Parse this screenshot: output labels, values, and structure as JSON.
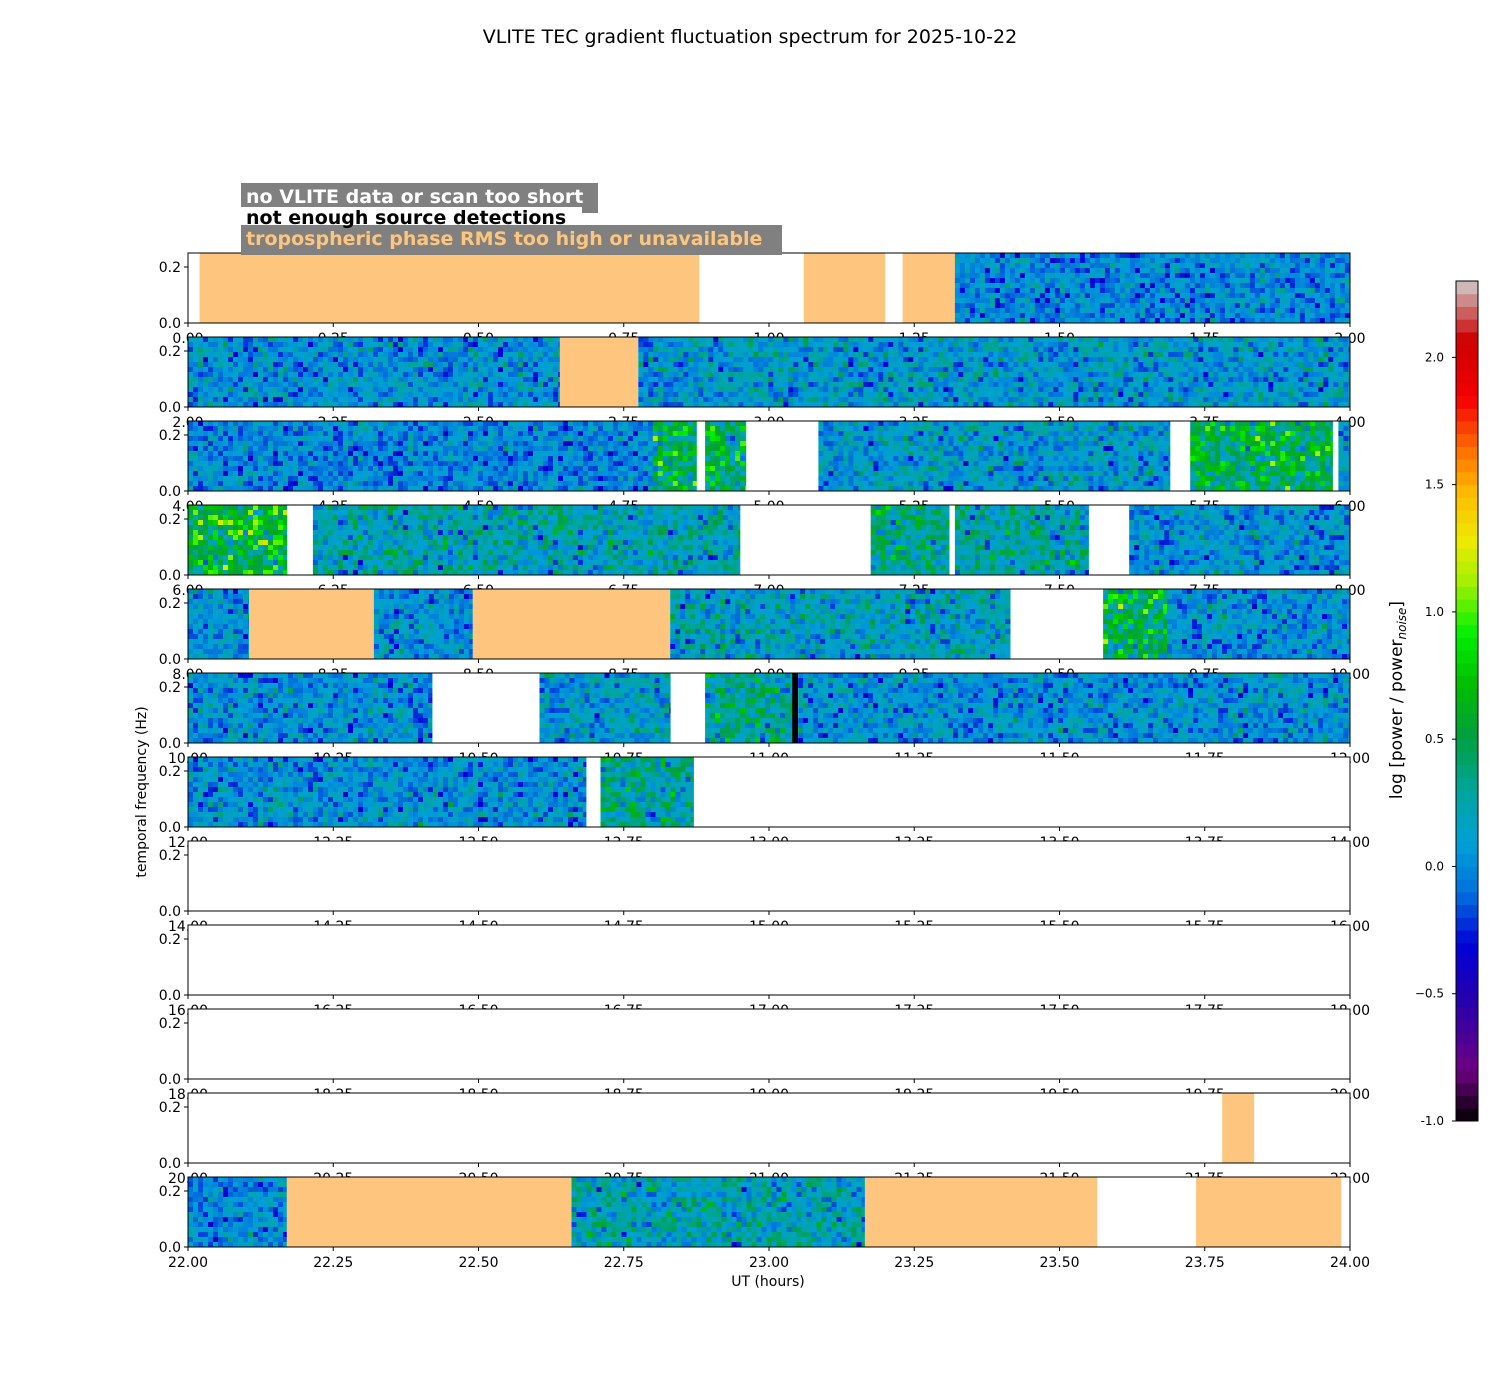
{
  "chart_data": {
    "type": "heatmap",
    "title": "VLITE TEC gradient fluctuation spectrum for 2025-10-22",
    "xlabel": "UT (hours)",
    "ylabel": "temporal frequency (Hz)",
    "ylim": [
      0,
      0.25
    ],
    "y_ticks": [
      "0.0",
      "0.2"
    ],
    "colorbar": {
      "label": "log [power / power",
      "label_sub": "noise",
      "label_end": "]",
      "range": [
        -1.0,
        2.3
      ],
      "ticks": [
        "-1.0",
        "−0.5",
        "0.0",
        "0.5",
        "1.0",
        "1.5",
        "2.0"
      ],
      "tick_values": [
        -1.0,
        -0.5,
        0.0,
        0.5,
        1.0,
        1.5,
        2.0
      ]
    },
    "legend": [
      {
        "label": "no VLITE data or scan too short",
        "color": "#ffffff"
      },
      {
        "label": "not enough source detections",
        "color": "#000000"
      },
      {
        "label": "tropospheric phase RMS too high or unavailable",
        "color": "#fdc57d"
      }
    ],
    "colors": {
      "trop": "#fdc57d",
      "legend_box": "#808080"
    },
    "panels": [
      {
        "range": [
          0,
          2
        ],
        "ticks": [
          "0.00",
          "0.25",
          "0.50",
          "0.75",
          "1.00",
          "1.25",
          "1.50",
          "1.75",
          "2.00"
        ],
        "segments": [
          {
            "start": 0.02,
            "end": 0.88,
            "kind": "trop"
          },
          {
            "start": 1.06,
            "end": 1.2,
            "kind": "trop"
          },
          {
            "start": 1.23,
            "end": 1.32,
            "kind": "trop"
          },
          {
            "start": 1.32,
            "end": 2.0,
            "kind": "data",
            "level": 0.0
          }
        ]
      },
      {
        "range": [
          2,
          4
        ],
        "ticks": [
          "2.00",
          "2.25",
          "2.50",
          "2.75",
          "3.00",
          "3.25",
          "3.50",
          "3.75",
          "4.00"
        ],
        "segments": [
          {
            "start": 2.0,
            "end": 2.64,
            "kind": "data",
            "level": 0.05
          },
          {
            "start": 2.64,
            "end": 2.775,
            "kind": "trop"
          },
          {
            "start": 2.775,
            "end": 4.0,
            "kind": "data",
            "level": 0.1
          }
        ]
      },
      {
        "range": [
          4,
          6
        ],
        "ticks": [
          "4.00",
          "4.25",
          "4.50",
          "4.75",
          "5.00",
          "5.25",
          "5.50",
          "5.75",
          "6.00"
        ],
        "segments": [
          {
            "start": 4.0,
            "end": 4.8,
            "kind": "data",
            "level": 0.0
          },
          {
            "start": 4.8,
            "end": 4.875,
            "kind": "data",
            "level": 0.5
          },
          {
            "start": 4.89,
            "end": 4.96,
            "kind": "data",
            "level": 0.5
          },
          {
            "start": 5.085,
            "end": 5.69,
            "kind": "data",
            "level": 0.1
          },
          {
            "start": 5.725,
            "end": 5.97,
            "kind": "data",
            "level": 0.5
          },
          {
            "start": 5.98,
            "end": 6.0,
            "kind": "data",
            "level": 0.1
          }
        ]
      },
      {
        "range": [
          6,
          8
        ],
        "ticks": [
          "6.00",
          "6.25",
          "6.50",
          "6.75",
          "7.00",
          "7.25",
          "7.50",
          "7.75",
          "8.00"
        ],
        "segments": [
          {
            "start": 6.0,
            "end": 6.17,
            "kind": "data",
            "level": 0.6
          },
          {
            "start": 6.215,
            "end": 6.95,
            "kind": "data",
            "level": 0.2
          },
          {
            "start": 7.175,
            "end": 7.31,
            "kind": "data",
            "level": 0.35
          },
          {
            "start": 7.32,
            "end": 7.55,
            "kind": "data",
            "level": 0.25
          },
          {
            "start": 7.62,
            "end": 8.0,
            "kind": "data",
            "level": 0.05
          }
        ]
      },
      {
        "range": [
          8,
          10
        ],
        "ticks": [
          "8.00",
          "8.25",
          "8.50",
          "8.75",
          "9.00",
          "9.25",
          "9.50",
          "9.75",
          "10.00"
        ],
        "segments": [
          {
            "start": 8.0,
            "end": 8.105,
            "kind": "data",
            "level": 0.05
          },
          {
            "start": 8.105,
            "end": 8.32,
            "kind": "trop"
          },
          {
            "start": 8.32,
            "end": 8.49,
            "kind": "data",
            "level": 0.05
          },
          {
            "start": 8.49,
            "end": 8.83,
            "kind": "trop"
          },
          {
            "start": 8.83,
            "end": 9.415,
            "kind": "data",
            "level": 0.15
          },
          {
            "start": 9.575,
            "end": 9.685,
            "kind": "data",
            "level": 0.5
          },
          {
            "start": 9.685,
            "end": 10.0,
            "kind": "data",
            "level": 0.05
          }
        ]
      },
      {
        "range": [
          10,
          12
        ],
        "ticks": [
          "10.00",
          "10.25",
          "10.50",
          "10.75",
          "11.00",
          "11.25",
          "11.50",
          "11.75",
          "12.00"
        ],
        "segments": [
          {
            "start": 10.0,
            "end": 10.42,
            "kind": "data",
            "level": 0.05
          },
          {
            "start": 10.605,
            "end": 10.83,
            "kind": "data",
            "level": 0.1
          },
          {
            "start": 10.89,
            "end": 11.04,
            "kind": "data",
            "level": 0.3
          },
          {
            "start": 11.04,
            "end": 11.05,
            "kind": "nodet"
          },
          {
            "start": 11.05,
            "end": 12.0,
            "kind": "data",
            "level": 0.05
          }
        ]
      },
      {
        "range": [
          12,
          14
        ],
        "ticks": [
          "12.00",
          "12.25",
          "12.50",
          "12.75",
          "13.00",
          "13.25",
          "13.50",
          "13.75",
          "14.00"
        ],
        "segments": [
          {
            "start": 12.0,
            "end": 12.685,
            "kind": "data",
            "level": 0.05
          },
          {
            "start": 12.71,
            "end": 12.87,
            "kind": "data",
            "level": 0.3
          }
        ]
      },
      {
        "range": [
          14,
          16
        ],
        "ticks": [
          "14.00",
          "14.25",
          "14.50",
          "14.75",
          "15.00",
          "15.25",
          "15.50",
          "15.75",
          "16.00"
        ],
        "segments": []
      },
      {
        "range": [
          16,
          18
        ],
        "ticks": [
          "16.00",
          "16.25",
          "16.50",
          "16.75",
          "17.00",
          "17.25",
          "17.50",
          "17.75",
          "18.00"
        ],
        "segments": []
      },
      {
        "range": [
          18,
          20
        ],
        "ticks": [
          "18.00",
          "18.25",
          "18.50",
          "18.75",
          "19.00",
          "19.25",
          "19.50",
          "19.75",
          "20.00"
        ],
        "segments": []
      },
      {
        "range": [
          20,
          22
        ],
        "ticks": [
          "20.00",
          "20.25",
          "20.50",
          "20.75",
          "21.00",
          "21.25",
          "21.50",
          "21.75",
          "22.00"
        ],
        "segments": [
          {
            "start": 21.78,
            "end": 21.835,
            "kind": "trop"
          }
        ]
      },
      {
        "range": [
          22,
          24
        ],
        "ticks": [
          "22.00",
          "22.25",
          "22.50",
          "22.75",
          "23.00",
          "23.25",
          "23.50",
          "23.75",
          "24.00"
        ],
        "segments": [
          {
            "start": 22.0,
            "end": 22.17,
            "kind": "data",
            "level": 0.0
          },
          {
            "start": 22.17,
            "end": 22.66,
            "kind": "trop"
          },
          {
            "start": 22.66,
            "end": 23.165,
            "kind": "data",
            "level": 0.2
          },
          {
            "start": 23.165,
            "end": 23.565,
            "kind": "trop"
          },
          {
            "start": 23.735,
            "end": 23.985,
            "kind": "trop"
          }
        ]
      }
    ]
  }
}
